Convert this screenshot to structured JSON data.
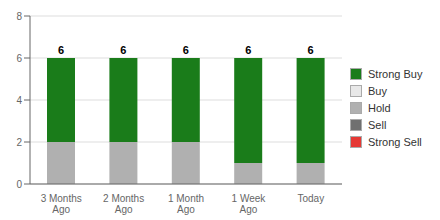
{
  "chart_data": {
    "type": "bar",
    "stacked": true,
    "categories": [
      "3 Months\nAgo",
      "2 Months\nAgo",
      "1 Month\nAgo",
      "1 Week\nAgo",
      "Today"
    ],
    "series": [
      {
        "name": "Strong Buy",
        "color": "#1a7c1a",
        "values": [
          4,
          4,
          4,
          5,
          5
        ]
      },
      {
        "name": "Buy",
        "color": "#e8e8e8",
        "values": [
          0,
          0,
          0,
          0,
          0
        ]
      },
      {
        "name": "Hold",
        "color": "#b0b0b0",
        "values": [
          2,
          2,
          2,
          1,
          1
        ]
      },
      {
        "name": "Sell",
        "color": "#707070",
        "values": [
          0,
          0,
          0,
          0,
          0
        ]
      },
      {
        "name": "Strong Sell",
        "color": "#e53935",
        "values": [
          0,
          0,
          0,
          0,
          0
        ]
      }
    ],
    "totals": [
      6,
      6,
      6,
      6,
      6
    ],
    "ylim": [
      0,
      8
    ],
    "yticks": [
      0,
      2,
      4,
      6,
      8
    ],
    "grid": true,
    "legend": "right"
  }
}
